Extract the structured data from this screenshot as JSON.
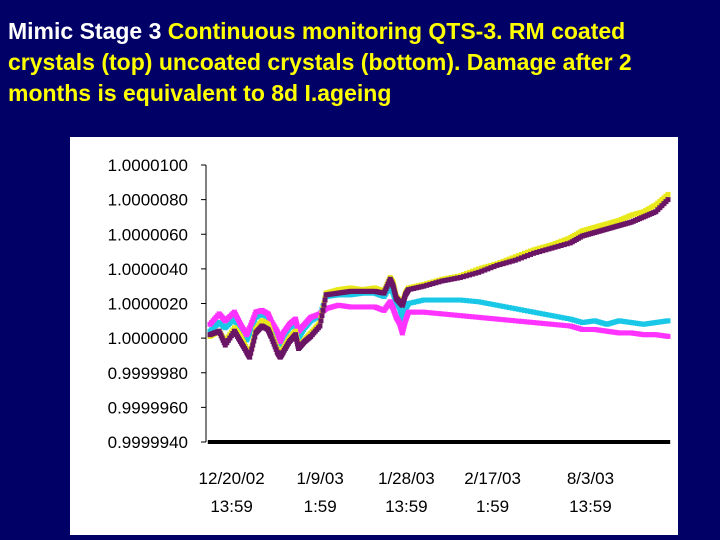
{
  "slide": {
    "title_lead": "Mimic Stage 3",
    "title_rest": "Continuous monitoring QTS-3. RM coated crystals (top) uncoated crystals (bottom). Damage after 2 months is equivalent to 8d I.ageing"
  },
  "colors": {
    "background": "#000066",
    "title_lead": "#ffffff",
    "title_rest": "#ffff00",
    "series_cyan": "#19c8e6",
    "series_magenta": "#ff33ff",
    "series_yellow": "#e8e81a",
    "series_purple": "#6b1566",
    "baseline_marks": "#000000"
  },
  "chart_data": {
    "type": "scatter",
    "title": "",
    "xlabel": "",
    "ylabel": "",
    "x_tick_labels": [
      {
        "line1": "12/20/02",
        "line2": "13:59"
      },
      {
        "line1": "1/9/03",
        "line2": "1:59"
      },
      {
        "line1": "1/28/03",
        "line2": "13:59"
      },
      {
        "line1": "2/17/03",
        "line2": "1:59"
      },
      {
        "line1": "8/3/03",
        "line2": "13:59"
      }
    ],
    "y_tick_labels": [
      "1.0000100",
      "1.0000080",
      "1.0000060",
      "1.0000040",
      "1.0000020",
      "1.0000000",
      "0.9999980",
      "0.9999960",
      "0.9999940"
    ],
    "ylim": [
      0.999994,
      1.00001
    ],
    "grid": false,
    "legend": "none",
    "series": [
      {
        "color_key": "series_cyan",
        "points": [
          [
            0,
            1.0000004
          ],
          [
            3,
            1.0000009
          ],
          [
            5,
            1.0000006
          ],
          [
            8,
            1.0000011
          ],
          [
            10,
            1.0000005
          ],
          [
            12,
            0.9999999
          ],
          [
            13,
            1.0000003
          ],
          [
            15,
            1.0000012
          ],
          [
            17,
            1.0000014
          ],
          [
            19,
            1.0000012
          ],
          [
            20,
            1.0000008
          ],
          [
            22,
            1.0000001
          ],
          [
            23,
            0.9999996
          ],
          [
            24,
            1.0000001
          ],
          [
            26,
            1.0000006
          ],
          [
            28,
            1.0000008
          ],
          [
            29,
            1.0
          ],
          [
            31,
            1.0000006
          ],
          [
            33,
            1.000001
          ],
          [
            36,
            1.0000013
          ],
          [
            38,
            1.0000024
          ],
          [
            42,
            1.0000025
          ],
          [
            46,
            1.0000025
          ],
          [
            50,
            1.0000026
          ],
          [
            54,
            1.0000026
          ],
          [
            57,
            1.0000024
          ],
          [
            59,
            1.000003
          ],
          [
            60,
            1.0000026
          ],
          [
            61,
            1.000002
          ],
          [
            62,
            1.0000018
          ],
          [
            63,
            1.0000011
          ],
          [
            64,
            1.0000017
          ],
          [
            65,
            1.000002
          ],
          [
            70,
            1.0000022
          ],
          [
            76,
            1.0000022
          ],
          [
            82,
            1.0000022
          ],
          [
            88,
            1.0000021
          ],
          [
            94,
            1.0000019
          ],
          [
            100,
            1.0000017
          ],
          [
            106,
            1.0000015
          ],
          [
            112,
            1.0000013
          ],
          [
            118,
            1.0000011
          ],
          [
            122,
            1.0000009
          ],
          [
            126,
            1.000001
          ],
          [
            130,
            1.0000008
          ],
          [
            134,
            1.000001
          ],
          [
            138,
            1.0000009
          ],
          [
            142,
            1.0000008
          ],
          [
            146,
            1.0000009
          ],
          [
            150,
            1.000001
          ]
        ]
      },
      {
        "color_key": "series_magenta",
        "points": [
          [
            0,
            1.0000008
          ],
          [
            3,
            1.0000014
          ],
          [
            5,
            1.000001
          ],
          [
            8,
            1.0000015
          ],
          [
            10,
            1.0000008
          ],
          [
            12,
            1.0000002
          ],
          [
            13,
            1.0000006
          ],
          [
            15,
            1.0000015
          ],
          [
            17,
            1.0000016
          ],
          [
            19,
            1.0000014
          ],
          [
            20,
            1.000001
          ],
          [
            22,
            1.0000004
          ],
          [
            23,
            0.9999998
          ],
          [
            24,
            1.0000003
          ],
          [
            26,
            1.0000008
          ],
          [
            28,
            1.0000011
          ],
          [
            29,
            1.0000004
          ],
          [
            31,
            1.0000008
          ],
          [
            33,
            1.0000012
          ],
          [
            36,
            1.0000014
          ],
          [
            38,
            1.0000017
          ],
          [
            42,
            1.0000019
          ],
          [
            46,
            1.0000018
          ],
          [
            50,
            1.0000018
          ],
          [
            54,
            1.0000018
          ],
          [
            57,
            1.0000016
          ],
          [
            59,
            1.0000021
          ],
          [
            60,
            1.0000017
          ],
          [
            61,
            1.0000012
          ],
          [
            62,
            1.0000009
          ],
          [
            63,
            1.0000003
          ],
          [
            64,
            1.000001
          ],
          [
            65,
            1.0000015
          ],
          [
            70,
            1.0000015
          ],
          [
            76,
            1.0000014
          ],
          [
            82,
            1.0000013
          ],
          [
            88,
            1.0000012
          ],
          [
            94,
            1.0000011
          ],
          [
            100,
            1.000001
          ],
          [
            106,
            1.0000009
          ],
          [
            112,
            1.0000008
          ],
          [
            118,
            1.0000007
          ],
          [
            122,
            1.0000005
          ],
          [
            126,
            1.0000005
          ],
          [
            130,
            1.0000004
          ],
          [
            134,
            1.0000003
          ],
          [
            138,
            1.0000003
          ],
          [
            142,
            1.0000002
          ],
          [
            146,
            1.0000002
          ],
          [
            150,
            1.0000001
          ]
        ]
      },
      {
        "color_key": "series_yellow",
        "points": [
          [
            0,
            1.0000001
          ],
          [
            3,
            1.0000004
          ],
          [
            5,
            0.9999998
          ],
          [
            8,
            1.0000006
          ],
          [
            10,
            1.0000001
          ],
          [
            12,
            0.9999994
          ],
          [
            13,
            0.999999
          ],
          [
            15,
            1.0000005
          ],
          [
            17,
            1.000001
          ],
          [
            19,
            1.0000008
          ],
          [
            20,
            1.0000003
          ],
          [
            22,
            0.9999994
          ],
          [
            23,
            0.999999
          ],
          [
            24,
            0.9999994
          ],
          [
            26,
            1.0
          ],
          [
            28,
            1.0000004
          ],
          [
            29,
            0.9999995
          ],
          [
            31,
            0.9999999
          ],
          [
            33,
            1.0000003
          ],
          [
            36,
            1.0000009
          ],
          [
            38,
            1.0000026
          ],
          [
            42,
            1.0000028
          ],
          [
            46,
            1.0000029
          ],
          [
            50,
            1.0000028
          ],
          [
            54,
            1.0000029
          ],
          [
            57,
            1.0000027
          ],
          [
            59,
            1.0000035
          ],
          [
            60,
            1.0000032
          ],
          [
            61,
            1.0000024
          ],
          [
            62,
            1.0000022
          ],
          [
            63,
            1.000002
          ],
          [
            64,
            1.0000026
          ],
          [
            65,
            1.0000029
          ],
          [
            70,
            1.0000031
          ],
          [
            76,
            1.0000034
          ],
          [
            82,
            1.0000036
          ],
          [
            88,
            1.000004
          ],
          [
            94,
            1.0000043
          ],
          [
            100,
            1.0000047
          ],
          [
            106,
            1.0000051
          ],
          [
            112,
            1.0000054
          ],
          [
            118,
            1.0000058
          ],
          [
            122,
            1.0000062
          ],
          [
            126,
            1.0000064
          ],
          [
            130,
            1.0000066
          ],
          [
            134,
            1.0000068
          ],
          [
            138,
            1.0000071
          ],
          [
            142,
            1.0000073
          ],
          [
            146,
            1.0000077
          ],
          [
            150,
            1.0000083
          ]
        ]
      },
      {
        "color_key": "series_purple",
        "points": [
          [
            0,
            1.0000002
          ],
          [
            3,
            1.0000004
          ],
          [
            5,
            0.9999996
          ],
          [
            8,
            1.0000004
          ],
          [
            10,
            0.9999998
          ],
          [
            12,
            0.9999992
          ],
          [
            13,
            0.9999989
          ],
          [
            15,
            1.0000003
          ],
          [
            17,
            1.0000007
          ],
          [
            19,
            1.0000005
          ],
          [
            20,
            1.0000001
          ],
          [
            22,
            0.9999992
          ],
          [
            23,
            0.9999989
          ],
          [
            24,
            0.9999992
          ],
          [
            26,
            0.9999998
          ],
          [
            28,
            1.0000002
          ],
          [
            29,
            0.9999994
          ],
          [
            31,
            0.9999998
          ],
          [
            33,
            1.0000001
          ],
          [
            36,
            1.0000007
          ],
          [
            38,
            1.0000025
          ],
          [
            42,
            1.0000026
          ],
          [
            46,
            1.0000027
          ],
          [
            50,
            1.0000027
          ],
          [
            54,
            1.0000027
          ],
          [
            57,
            1.0000026
          ],
          [
            59,
            1.0000034
          ],
          [
            60,
            1.000003
          ],
          [
            61,
            1.0000023
          ],
          [
            62,
            1.0000021
          ],
          [
            63,
            1.0000019
          ],
          [
            64,
            1.0000025
          ],
          [
            65,
            1.0000028
          ],
          [
            70,
            1.000003
          ],
          [
            76,
            1.0000033
          ],
          [
            82,
            1.0000035
          ],
          [
            88,
            1.0000038
          ],
          [
            94,
            1.0000042
          ],
          [
            100,
            1.0000045
          ],
          [
            106,
            1.0000049
          ],
          [
            112,
            1.0000052
          ],
          [
            118,
            1.0000055
          ],
          [
            122,
            1.0000059
          ],
          [
            126,
            1.0000061
          ],
          [
            130,
            1.0000063
          ],
          [
            134,
            1.0000065
          ],
          [
            138,
            1.0000067
          ],
          [
            142,
            1.000007
          ],
          [
            146,
            1.0000073
          ],
          [
            150,
            1.000008
          ]
        ]
      },
      {
        "color_key": "baseline_marks",
        "points": [
          [
            0,
            0.999994
          ],
          [
            10,
            0.999994
          ],
          [
            20,
            0.999994
          ],
          [
            30,
            0.999994
          ],
          [
            40,
            0.999994
          ],
          [
            50,
            0.999994
          ],
          [
            60,
            0.999994
          ],
          [
            70,
            0.999994
          ],
          [
            80,
            0.999994
          ],
          [
            90,
            0.999994
          ],
          [
            100,
            0.999994
          ],
          [
            110,
            0.999994
          ],
          [
            120,
            0.999994
          ],
          [
            130,
            0.999994
          ],
          [
            140,
            0.999994
          ],
          [
            150,
            0.999994
          ]
        ]
      }
    ]
  }
}
